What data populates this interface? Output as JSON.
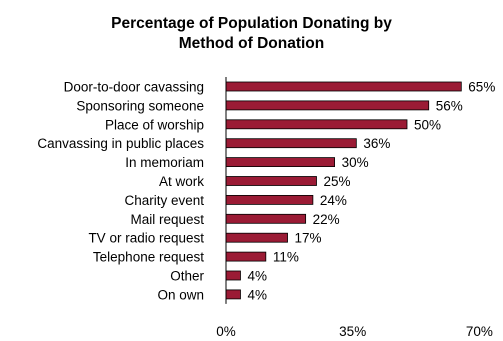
{
  "chart_data": {
    "type": "bar",
    "orientation": "horizontal",
    "title_lines": [
      "Percentage of Population Donating by",
      "Method of Donation"
    ],
    "categories": [
      "Door-to-door cavassing",
      "Sponsoring someone",
      "Place of worship",
      "Canvassing in public places",
      "In memoriam",
      "At work",
      "Charity event",
      "Mail request",
      "TV or radio request",
      "Telephone request",
      "Other",
      "On own"
    ],
    "values": [
      65,
      56,
      50,
      36,
      30,
      25,
      24,
      22,
      17,
      11,
      4,
      4
    ],
    "value_labels": [
      "65%",
      "56%",
      "50%",
      "36%",
      "30%",
      "25%",
      "24%",
      "22%",
      "17%",
      "11%",
      "4%",
      "4%"
    ],
    "xlim": [
      0,
      70
    ],
    "xticks": [
      0,
      35,
      70
    ],
    "xtick_labels": [
      "0%",
      "35%",
      "70%"
    ],
    "grid": false,
    "legend": "none",
    "bar_color": "#9b1b35"
  }
}
